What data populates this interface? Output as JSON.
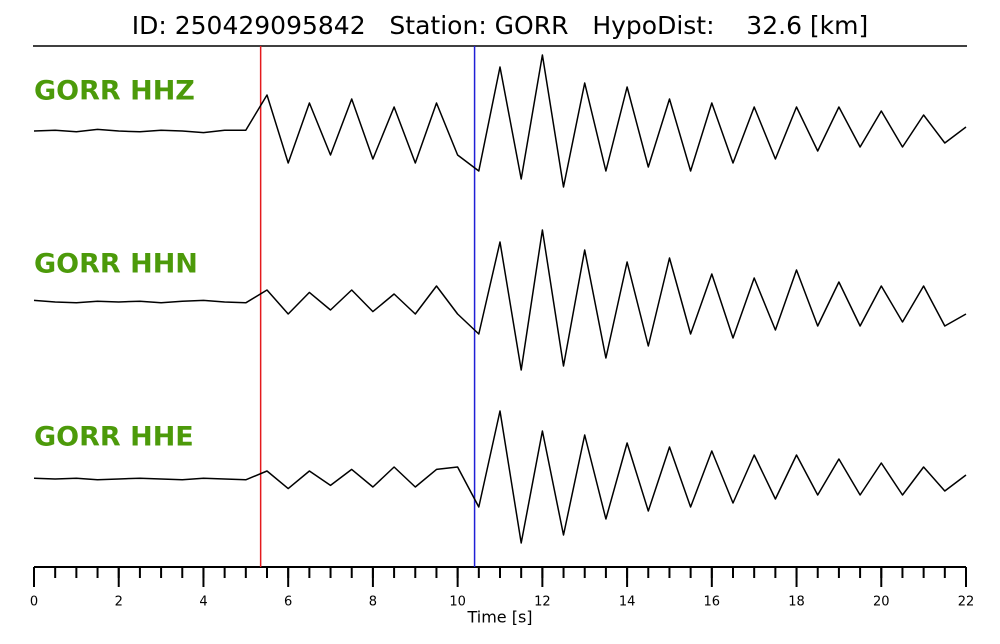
{
  "chart_data": {
    "type": "waveform",
    "title": "ID: 250429095842   Station: GORR   HypoDist:    32.6 [km]",
    "x_label": "Time [s]",
    "xlim": [
      0,
      22
    ],
    "xticks": [
      0,
      2,
      4,
      6,
      8,
      10,
      12,
      14,
      16,
      18,
      20,
      22
    ],
    "xminorticks": [
      0,
      0.5,
      1,
      1.5,
      2,
      2.5,
      3,
      3.5,
      4,
      4.5,
      5,
      5.5,
      6,
      6.5,
      7,
      7.5,
      8,
      8.5,
      9,
      9.5,
      10,
      10.5,
      11,
      11.5,
      12,
      12.5,
      13,
      13.5,
      14,
      14.5,
      15,
      15.5,
      16,
      16.5,
      17,
      17.5,
      18,
      18.5,
      19,
      19.5,
      20,
      20.5,
      21,
      21.5,
      22
    ],
    "ylim": [
      -1,
      1
    ],
    "label_color": "#4c9a0a",
    "picks": [
      {
        "value": 5.35,
        "color": "#e41a1c"
      },
      {
        "value": 10.4,
        "color": "#1f1fd6"
      }
    ],
    "x": [
      0,
      0.5,
      1,
      1.5,
      2,
      2.5,
      3,
      3.5,
      4,
      4.5,
      5,
      5.5,
      6,
      6.5,
      7,
      7.5,
      8,
      8.5,
      9,
      9.5,
      10,
      10.5,
      11,
      11.5,
      12,
      12.5,
      13,
      13.5,
      14,
      14.5,
      15,
      15.5,
      16,
      16.5,
      17,
      17.5,
      18,
      18.5,
      19,
      19.5,
      20,
      20.5,
      21,
      21.5,
      22
    ],
    "series": [
      {
        "name": "GORR HHZ",
        "color": "#000000",
        "values": [
          0,
          0.01,
          -0.01,
          0.02,
          0,
          -0.01,
          0.01,
          0,
          -0.02,
          0.01,
          0.01,
          0.45,
          -0.4,
          0.35,
          -0.3,
          0.4,
          -0.35,
          0.3,
          -0.4,
          0.35,
          -0.3,
          -0.5,
          0.8,
          -0.6,
          0.95,
          -0.7,
          0.6,
          -0.5,
          0.55,
          -0.45,
          0.4,
          -0.5,
          0.35,
          -0.4,
          0.3,
          -0.35,
          0.3,
          -0.25,
          0.3,
          -0.2,
          0.25,
          -0.2,
          0.2,
          -0.15,
          0.05
        ]
      },
      {
        "name": "GORR HHN",
        "color": "#000000",
        "values": [
          0.02,
          0,
          -0.01,
          0.01,
          0,
          0.01,
          -0.01,
          0.01,
          0.02,
          0,
          -0.01,
          0.15,
          -0.15,
          0.12,
          -0.1,
          0.15,
          -0.12,
          0.1,
          -0.15,
          0.2,
          -0.15,
          -0.4,
          0.75,
          -0.85,
          0.9,
          -0.8,
          0.65,
          -0.7,
          0.5,
          -0.55,
          0.55,
          -0.4,
          0.35,
          -0.45,
          0.3,
          -0.35,
          0.4,
          -0.3,
          0.25,
          -0.3,
          0.2,
          -0.25,
          0.2,
          -0.3,
          -0.15
        ]
      },
      {
        "name": "GORR HHE",
        "color": "#000000",
        "values": [
          0.01,
          0,
          0.01,
          -0.01,
          0,
          0.01,
          0,
          -0.01,
          0.01,
          0,
          -0.01,
          0.1,
          -0.12,
          0.1,
          -0.08,
          0.12,
          -0.1,
          0.15,
          -0.1,
          0.12,
          0.15,
          -0.35,
          0.85,
          -0.8,
          0.6,
          -0.7,
          0.55,
          -0.5,
          0.45,
          -0.4,
          0.4,
          -0.35,
          0.35,
          -0.3,
          0.3,
          -0.25,
          0.3,
          -0.2,
          0.25,
          -0.2,
          0.2,
          -0.2,
          0.15,
          -0.15,
          0.05
        ]
      }
    ]
  }
}
